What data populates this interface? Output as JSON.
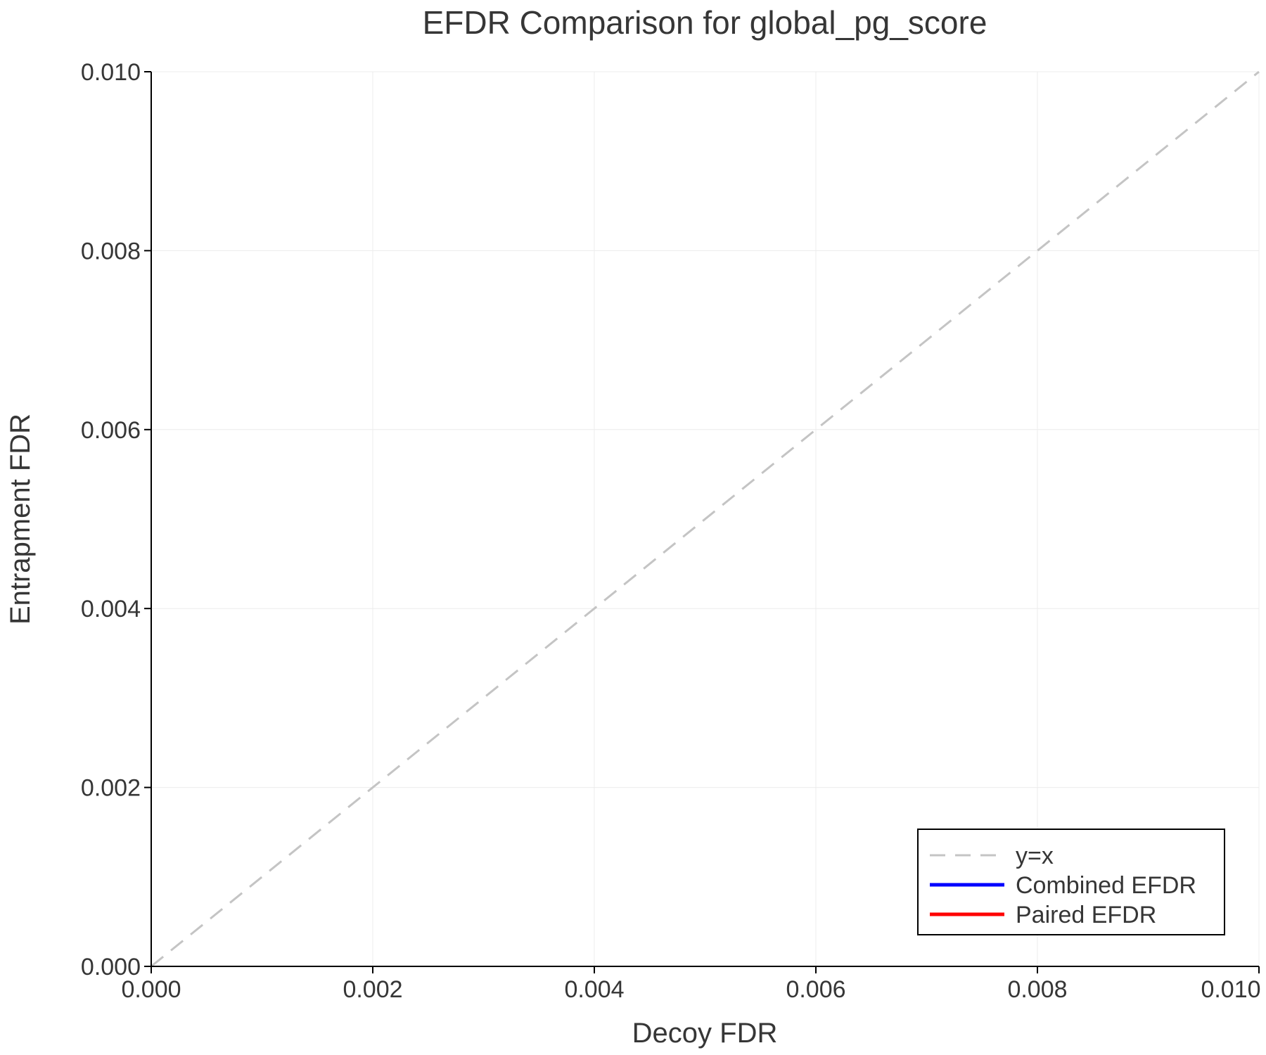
{
  "figure": {
    "background": "#ffffff"
  },
  "chart_data": {
    "type": "line",
    "title": "EFDR Comparison for global_pg_score",
    "xlabel": "Decoy FDR",
    "ylabel": "Entrapment FDR",
    "xlim": [
      0.0,
      0.01
    ],
    "ylim": [
      0.0,
      0.01
    ],
    "xticks": [
      0.0,
      0.002,
      0.004,
      0.006,
      0.008,
      0.01
    ],
    "yticks": [
      0.0,
      0.002,
      0.004,
      0.006,
      0.008,
      0.01
    ],
    "xtick_labels": [
      "0.000",
      "0.002",
      "0.004",
      "0.006",
      "0.008",
      "0.010"
    ],
    "ytick_labels": [
      "0.000",
      "0.002",
      "0.004",
      "0.006",
      "0.008",
      "0.010"
    ],
    "grid": true,
    "grid_color": "#ececec",
    "axis_color": "#000000",
    "text_color": "#363636",
    "legend_position": "bottom-right",
    "series": [
      {
        "name": "y=x",
        "role": "reference-line",
        "style": "dashed",
        "color": "#c4c4c4",
        "x": [
          0.0,
          0.01
        ],
        "y": [
          0.0,
          0.01
        ]
      },
      {
        "name": "Combined EFDR",
        "style": "solid",
        "color": "#0000ff",
        "x": [],
        "y": []
      },
      {
        "name": "Paired EFDR",
        "style": "solid",
        "color": "#ff0000",
        "x": [],
        "y": []
      }
    ]
  }
}
